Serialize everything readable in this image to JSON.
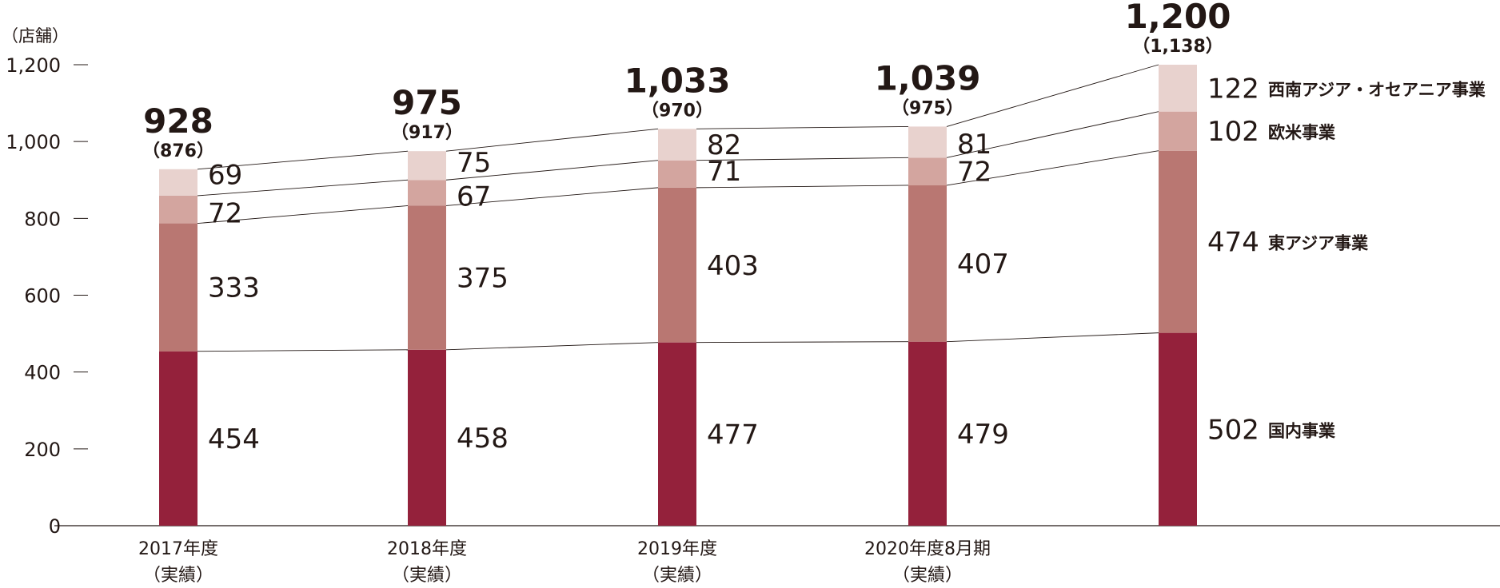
{
  "chart_data": {
    "type": "bar",
    "stacked": true,
    "unit_label": "（店舗）",
    "ylim": [
      0,
      1200
    ],
    "yticks": [
      "0",
      "200",
      "400",
      "600",
      "800",
      "1,000",
      "1,200"
    ],
    "categories": [
      {
        "line1": "2017年度",
        "line2": "（実績）"
      },
      {
        "line1": "2018年度",
        "line2": "（実績）"
      },
      {
        "line1": "2019年度",
        "line2": "（実績）"
      },
      {
        "line1": "2020年度8月期",
        "line2": "（実績）"
      },
      {
        "line1": "",
        "line2": ""
      }
    ],
    "totals": [
      "928",
      "975",
      "1,033",
      "1,039",
      "1,200"
    ],
    "sub_totals": [
      "（876）",
      "（917）",
      "（970）",
      "（975）",
      "（1,138）"
    ],
    "series": [
      {
        "name": "国内事業",
        "color": "#94213b",
        "values": [
          454,
          458,
          477,
          479,
          502
        ]
      },
      {
        "name": "東アジア事業",
        "color": "#b97772",
        "values": [
          333,
          375,
          403,
          407,
          474
        ]
      },
      {
        "name": "欧米事業",
        "color": "#d3a59f",
        "values": [
          72,
          67,
          71,
          72,
          102
        ]
      },
      {
        "name": "西南アジア・オセアニア事業",
        "color": "#e8d2ce",
        "values": [
          69,
          75,
          82,
          81,
          122
        ]
      }
    ],
    "grid": false,
    "legend": "right"
  }
}
